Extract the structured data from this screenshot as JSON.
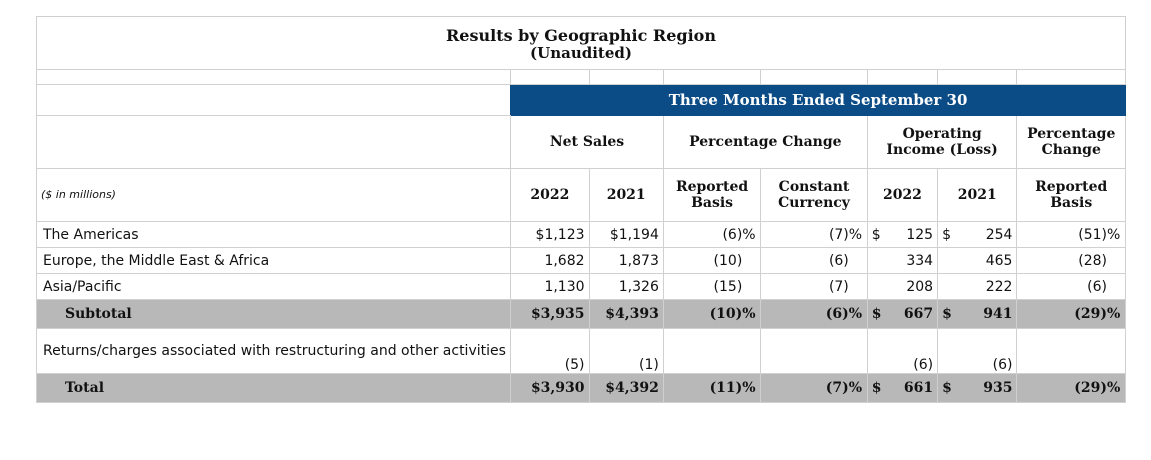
{
  "title": "Results by Geographic Region",
  "subtitle": "(Unaudited)",
  "band": "Three Months Ended September 30",
  "groups": {
    "net_sales": "Net Sales",
    "pct_change": "Percentage Change",
    "op_income": "Operating Income (Loss)",
    "pct_change2": "Percentage Change"
  },
  "units": "($ in millions)",
  "cols": {
    "y2022": "2022",
    "y2021": "2021",
    "reported": "Reported Basis",
    "constant": "Constant Currency",
    "oi2022": "2022",
    "oi2021": "2021",
    "reported2": "Reported Basis"
  },
  "dollar": "$",
  "pct": "%",
  "rows": [
    {
      "label": "The Americas",
      "ns22": "$1,123",
      "ns21": "$1,194",
      "rep": "(6)",
      "con": "(7)",
      "oi22": "125",
      "oi21": "254",
      "rep2": "(51)"
    },
    {
      "label": "Europe, the Middle East & Africa",
      "ns22": "1,682",
      "ns21": "1,873",
      "rep": "(10)",
      "con": "(6)",
      "oi22": "334",
      "oi21": "465",
      "rep2": "(28)"
    },
    {
      "label": "Asia/Pacific",
      "ns22": "1,130",
      "ns21": "1,326",
      "rep": "(15)",
      "con": "(7)",
      "oi22": "208",
      "oi21": "222",
      "rep2": "(6)"
    }
  ],
  "subtotal": {
    "label": "Subtotal",
    "ns22": "$3,935",
    "ns21": "$4,393",
    "rep": "(10)",
    "con": "(6)",
    "oi22": "667",
    "oi21": "941",
    "rep2": "(29)"
  },
  "returns": {
    "label": "Returns/charges associated with restructuring and other activities",
    "ns22": "(5)",
    "ns21": "(1)",
    "oi22": "(6)",
    "oi21": "(6)"
  },
  "total": {
    "label": "Total",
    "ns22": "$3,930",
    "ns21": "$4,392",
    "rep": "(11)",
    "con": "(7)",
    "oi22": "661",
    "oi21": "935",
    "rep2": "(29)"
  }
}
